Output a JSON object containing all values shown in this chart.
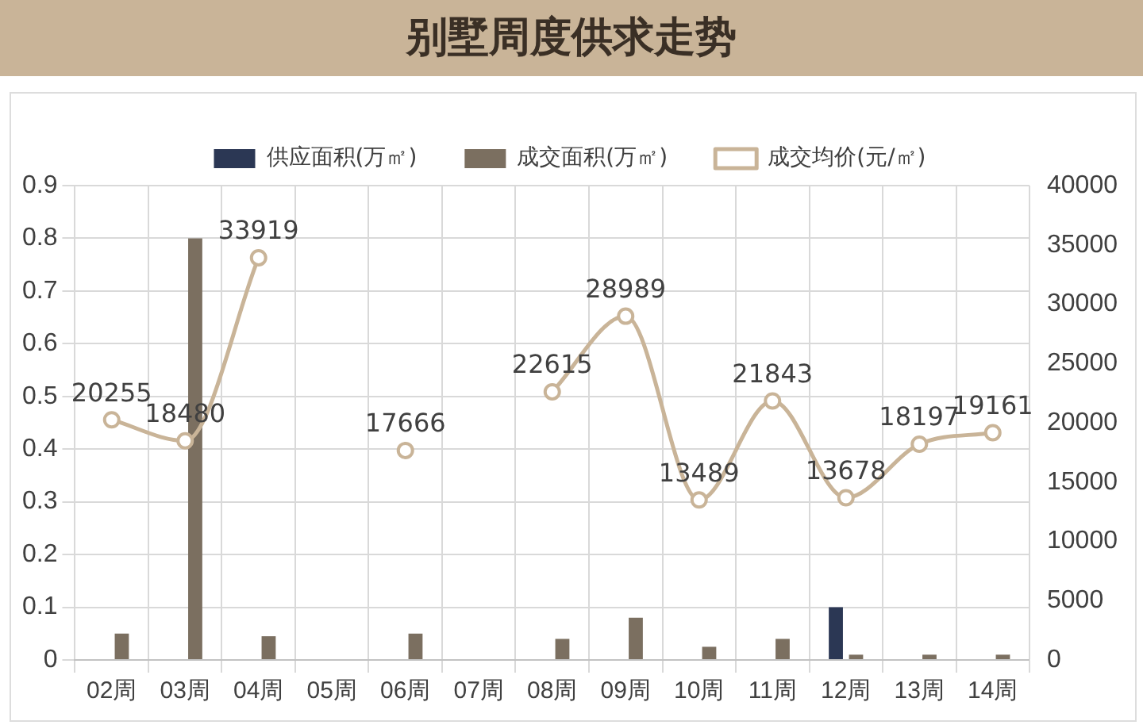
{
  "chart_data": {
    "type": "bar",
    "title": "别墅周度供求走势",
    "categories": [
      "02周",
      "03周",
      "04周",
      "05周",
      "06周",
      "07周",
      "08周",
      "09周",
      "10周",
      "11周",
      "12周",
      "13周",
      "14周"
    ],
    "series": [
      {
        "name": "供应面积(万㎡)",
        "color": "#2b3754",
        "values": [
          null,
          null,
          null,
          null,
          null,
          null,
          null,
          null,
          null,
          null,
          0.1,
          null,
          null
        ]
      },
      {
        "name": "成交面积(万㎡)",
        "color": "#7b6f60",
        "values": [
          0.05,
          0.8,
          0.045,
          null,
          0.05,
          null,
          0.04,
          0.08,
          0.025,
          0.04,
          0.01,
          0.01,
          0.01
        ]
      },
      {
        "name": "成交均价(元/㎡)",
        "type": "line",
        "axis": "y2",
        "color": "#c9b498",
        "data_labels": true,
        "marker": "circle",
        "values": [
          20255,
          18480,
          33919,
          null,
          17666,
          null,
          22615,
          28989,
          13489,
          21843,
          13678,
          18197,
          19161
        ]
      }
    ],
    "ylim": [
      0,
      0.9
    ],
    "yticks": [
      0,
      0.1,
      0.2,
      0.3,
      0.4,
      0.5,
      0.6,
      0.7,
      0.8,
      0.9
    ],
    "y2lim": [
      0,
      40000
    ],
    "y2ticks": [
      0,
      5000,
      10000,
      15000,
      20000,
      25000,
      30000,
      35000,
      40000
    ],
    "grid": true,
    "legend": "top"
  }
}
